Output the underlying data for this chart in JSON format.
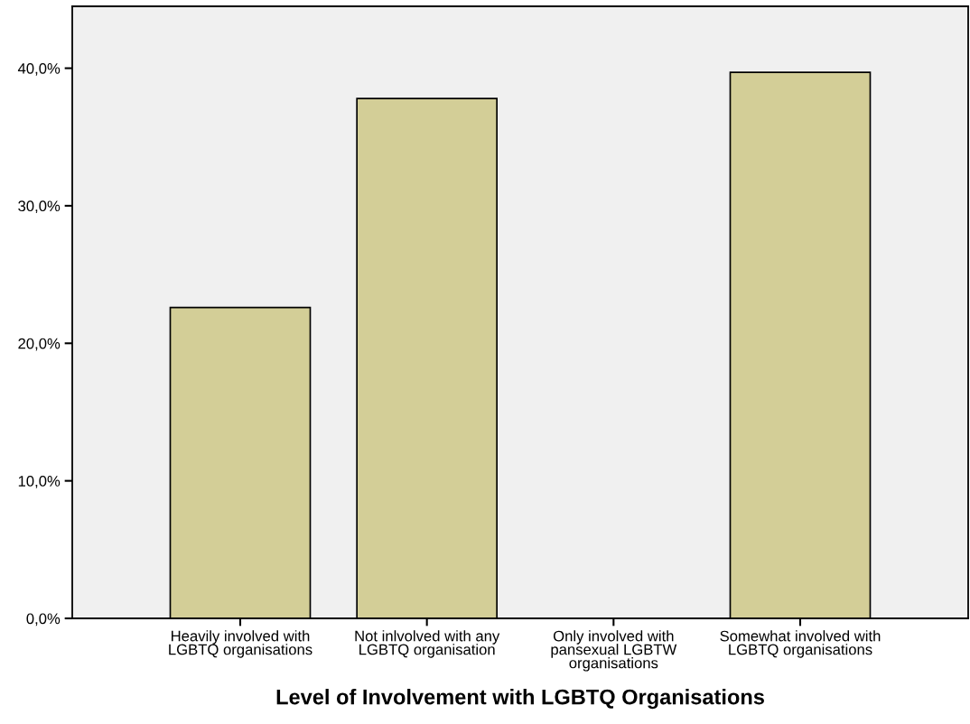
{
  "chart_data": {
    "type": "bar",
    "xlabel": "Level of Involvement with LGBTQ Organisations",
    "categories": [
      "Heavily involved with\nLGBTQ organisations",
      "Not inlvolved with any\nLGBTQ organisation",
      "Only involved with\npansexual LGBTW\norganisations",
      "Somewhat involved with\nLGBTQ organisations"
    ],
    "values": [
      22.6,
      37.8,
      0,
      39.7
    ],
    "color": "#d3ce97",
    "ylim": [
      0,
      44.5
    ],
    "yticks": [
      {
        "value": 0,
        "label": "0,0%"
      },
      {
        "value": 10,
        "label": "10,0%"
      },
      {
        "value": 20,
        "label": "20,0%"
      },
      {
        "value": 30,
        "label": "30,0%"
      },
      {
        "value": 40,
        "label": "40,0%"
      }
    ],
    "grid": false,
    "legend": false
  }
}
